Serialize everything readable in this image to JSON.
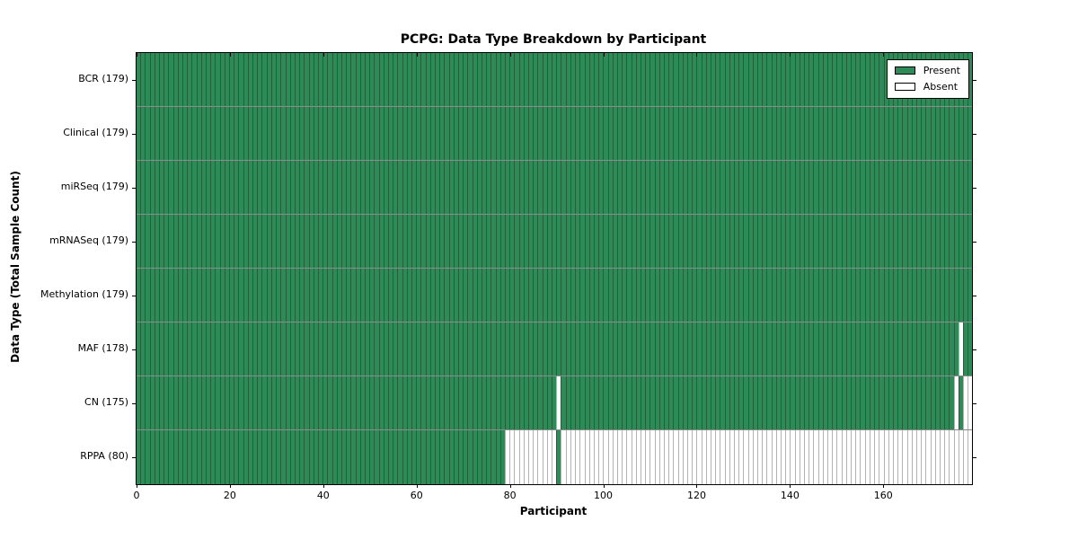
{
  "chart_data": {
    "type": "heatmap",
    "title": "PCPG: Data Type Breakdown by Participant",
    "xlabel": "Participant",
    "ylabel": "Data Type (Total Sample Count)",
    "n_participants": 179,
    "xlim": [
      0,
      179
    ],
    "x_ticks": [
      0,
      20,
      40,
      60,
      80,
      100,
      120,
      140,
      160
    ],
    "grid": false,
    "colors": {
      "present": "#2e8b57",
      "absent": "#ffffff",
      "edge": "rgba(0,0,0,0.30)"
    },
    "legend": {
      "position": "upper-right",
      "entries": [
        {
          "label": "Present",
          "color": "#2e8b57"
        },
        {
          "label": "Absent",
          "color": "#ffffff"
        }
      ]
    },
    "rows": [
      {
        "name": "BCR",
        "total": 179,
        "label": "BCR (179)",
        "segments": [
          {
            "from": 0,
            "to": 178,
            "state": "present"
          }
        ]
      },
      {
        "name": "Clinical",
        "total": 179,
        "label": "Clinical (179)",
        "segments": [
          {
            "from": 0,
            "to": 178,
            "state": "present"
          }
        ]
      },
      {
        "name": "miRSeq",
        "total": 179,
        "label": "miRSeq (179)",
        "segments": [
          {
            "from": 0,
            "to": 178,
            "state": "present"
          }
        ]
      },
      {
        "name": "mRNASeq",
        "total": 179,
        "label": "mRNASeq (179)",
        "segments": [
          {
            "from": 0,
            "to": 178,
            "state": "present"
          }
        ]
      },
      {
        "name": "Methylation",
        "total": 179,
        "label": "Methylation (179)",
        "segments": [
          {
            "from": 0,
            "to": 178,
            "state": "present"
          }
        ]
      },
      {
        "name": "MAF",
        "total": 178,
        "label": "MAF (178)",
        "segments": [
          {
            "from": 0,
            "to": 175,
            "state": "present"
          },
          {
            "from": 176,
            "to": 176,
            "state": "absent"
          },
          {
            "from": 177,
            "to": 178,
            "state": "present"
          }
        ]
      },
      {
        "name": "CN",
        "total": 175,
        "label": "CN (175)",
        "segments": [
          {
            "from": 0,
            "to": 89,
            "state": "present"
          },
          {
            "from": 90,
            "to": 90,
            "state": "absent"
          },
          {
            "from": 91,
            "to": 174,
            "state": "present"
          },
          {
            "from": 175,
            "to": 175,
            "state": "absent"
          },
          {
            "from": 176,
            "to": 176,
            "state": "present"
          },
          {
            "from": 177,
            "to": 178,
            "state": "absent"
          }
        ]
      },
      {
        "name": "RPPA",
        "total": 80,
        "label": "RPPA (80)",
        "segments": [
          {
            "from": 0,
            "to": 78,
            "state": "present"
          },
          {
            "from": 79,
            "to": 89,
            "state": "absent"
          },
          {
            "from": 90,
            "to": 90,
            "state": "present"
          },
          {
            "from": 91,
            "to": 178,
            "state": "absent"
          }
        ]
      }
    ]
  }
}
